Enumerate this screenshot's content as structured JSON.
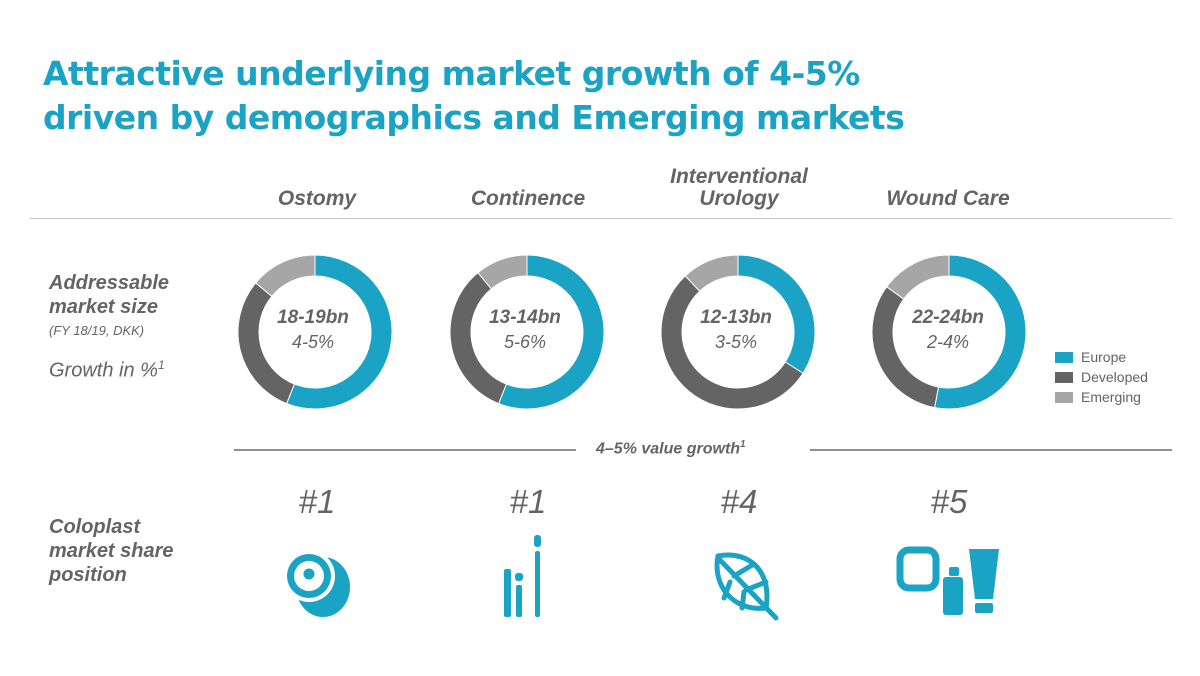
{
  "title": {
    "line1": "Attractive underlying market growth of 4-5%",
    "line2": "driven by demographics and Emerging markets"
  },
  "columns": [
    {
      "name_line1": "Ostomy",
      "name_line2": ""
    },
    {
      "name_line1": "Continence",
      "name_line2": ""
    },
    {
      "name_line1": "Interventional",
      "name_line2": "Urology"
    },
    {
      "name_line1": "Wound Care",
      "name_line2": ""
    }
  ],
  "row_labels": {
    "addressable_line1": "Addressable",
    "addressable_line2": "market size",
    "addressable_sub": "(FY 18/19, DKK)",
    "growth": "Growth in %",
    "growth_footnote": "1",
    "share_line1": "Coloplast",
    "share_line2": "market share",
    "share_line3": "position"
  },
  "value_growth": {
    "label": "4–5% value growth",
    "footnote": "1"
  },
  "ranks": [
    "#1",
    "#1",
    "#4",
    "#5"
  ],
  "icons": [
    "ostomy-bag-icon",
    "catheter-icon",
    "leaf-icon",
    "wound-care-products-icon"
  ],
  "colors": {
    "accent": "#1aa3c4",
    "europe": "#1aa3c4",
    "developed": "#646464",
    "emerging": "#a6a6a6",
    "text": "#646464"
  },
  "chart_data": {
    "type": "pie",
    "subtype": "donut",
    "legend": {
      "position": "right",
      "entries": [
        "Europe",
        "Developed",
        "Emerging"
      ]
    },
    "charts": [
      {
        "category": "Ostomy",
        "market_size": "18-19bn",
        "growth": "4-5%",
        "segments": [
          {
            "name": "Europe",
            "value": 56
          },
          {
            "name": "Developed",
            "value": 30
          },
          {
            "name": "Emerging",
            "value": 14
          }
        ]
      },
      {
        "category": "Continence",
        "market_size": "13-14bn",
        "growth": "5-6%",
        "segments": [
          {
            "name": "Europe",
            "value": 56
          },
          {
            "name": "Developed",
            "value": 33
          },
          {
            "name": "Emerging",
            "value": 11
          }
        ]
      },
      {
        "category": "Interventional Urology",
        "market_size": "12-13bn",
        "growth": "3-5%",
        "segments": [
          {
            "name": "Europe",
            "value": 34
          },
          {
            "name": "Developed",
            "value": 54
          },
          {
            "name": "Emerging",
            "value": 12
          }
        ]
      },
      {
        "category": "Wound Care",
        "market_size": "22-24bn",
        "growth": "2-4%",
        "segments": [
          {
            "name": "Europe",
            "value": 53
          },
          {
            "name": "Developed",
            "value": 32
          },
          {
            "name": "Emerging",
            "value": 15
          }
        ]
      }
    ]
  }
}
